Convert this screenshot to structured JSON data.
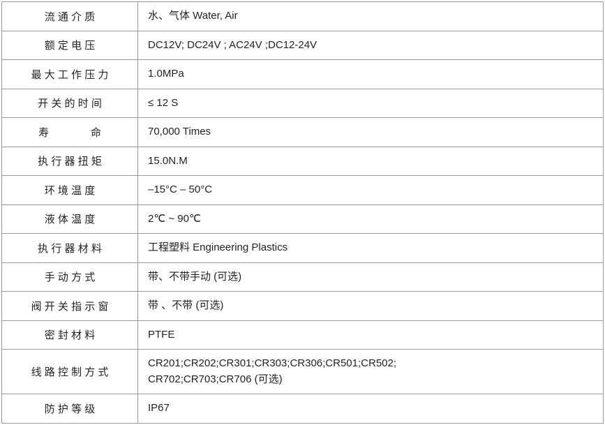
{
  "table": {
    "border_color": "#999999",
    "background_color": "#ffffff",
    "text_color": "#222222",
    "font_size": 15,
    "label_col_width": 195,
    "rows": [
      {
        "label": "流 通 介 质",
        "value": "水、气体 Water, Air"
      },
      {
        "label": "额 定 电 压",
        "value": "DC12V;  DC24V ; AC24V ;DC12-24V"
      },
      {
        "label": "最 大 工 作 压 力",
        "value": "1.0MPa"
      },
      {
        "label": "开 关 的 时 间",
        "value": "≤ 12 S"
      },
      {
        "label": "寿　　　　命",
        "value": "70,000 Times"
      },
      {
        "label": "执 行 器 扭 矩",
        "value": "15.0N.M"
      },
      {
        "label": "环 境 温 度",
        "value": "–15°C – 50°C"
      },
      {
        "label": "液 体 温 度",
        "value": "2℃ ~ 90℃"
      },
      {
        "label": "执 行 器 材 料",
        "value": "工程塑料   Engineering Plastics"
      },
      {
        "label": "手 动 方 式",
        "value": "带、不带手动 (可选)"
      },
      {
        "label": "阀 开 关 指 示 窗",
        "value": "带 、不带 (可选)"
      },
      {
        "label": "密 封 材 料",
        "value": "PTFE"
      },
      {
        "label": "线 路 控 制 方 式",
        "value": "CR201;CR202;CR301;CR303;CR306;CR501;CR502;\nCR702;CR703;CR706 (可选)"
      },
      {
        "label": "防 护 等 级",
        "value": "IP67"
      }
    ]
  }
}
